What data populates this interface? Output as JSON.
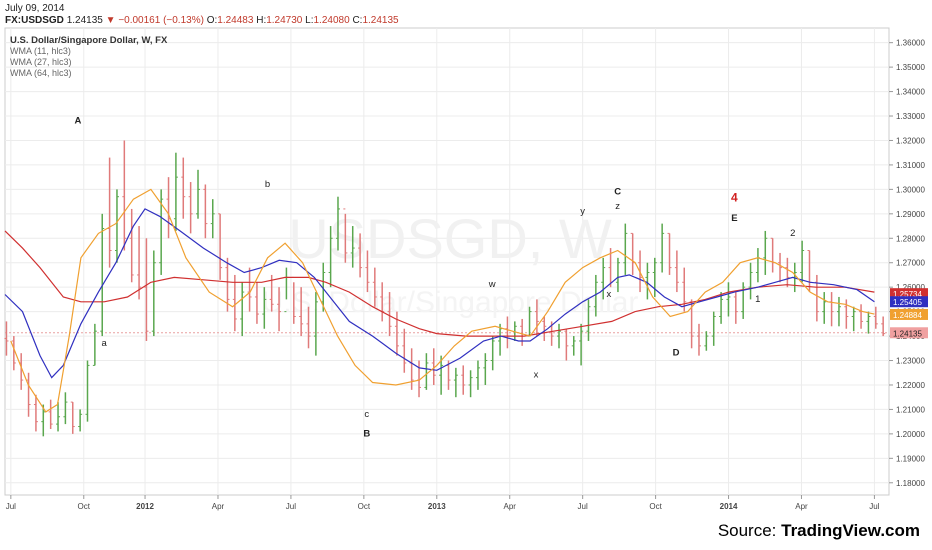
{
  "header": {
    "date": "July 09, 2014",
    "symbol": "FX:USDSGD",
    "last": "1.24135",
    "change": "−0.00161 (−0.13%)",
    "open_label": "O:",
    "open": "1.24483",
    "high_label": "H:",
    "high": "1.24730",
    "low_label": "L:",
    "low": "1.24080",
    "close_label": "C:",
    "close": "1.24135"
  },
  "source": {
    "prefix": "Source: ",
    "brand": "TradingView.com"
  },
  "colors": {
    "up": "#5aa74e",
    "down": "#e07a7a",
    "wma11": "#f0a030",
    "wma27": "#3030c0",
    "wma64": "#d03030",
    "wave4": "#d02020"
  },
  "chart_data": {
    "type": "line",
    "title": "U.S. Dollar/Singapore Dollar, W, FX",
    "watermark": "USDSGD, W",
    "watermark_sub": "U.S. Dollar/Singapore Dollar",
    "legend": [
      "WMA (11, hlc3)",
      "WMA (27, hlc3)",
      "WMA (64, hlc3)"
    ],
    "legend_placement": "top-left",
    "grid": true,
    "ylim": [
      1.175,
      1.366
    ],
    "xlim": [
      2011.52,
      2014.55
    ],
    "y_ticks": [
      1.18,
      1.19,
      1.2,
      1.21,
      1.22,
      1.23,
      1.24,
      1.25,
      1.26,
      1.27,
      1.28,
      1.29,
      1.3,
      1.31,
      1.32,
      1.33,
      1.34,
      1.35,
      1.36
    ],
    "y_tick_labels": [
      "1.18000",
      "1.19000",
      "1.20000",
      "1.21000",
      "1.22000",
      "1.23000",
      "1.24000",
      "1.25000",
      "1.26000",
      "1.27000",
      "1.28000",
      "1.29000",
      "1.30000",
      "1.31000",
      "1.32000",
      "1.33000",
      "1.34000",
      "1.35000",
      "1.36000"
    ],
    "x_ticks": [
      2011.54,
      2011.79,
      2012.0,
      2012.25,
      2012.5,
      2012.75,
      2013.0,
      2013.25,
      2013.5,
      2013.75,
      2014.0,
      2014.25,
      2014.5
    ],
    "x_tick_labels": [
      "Jul",
      "Oct",
      "2012",
      "Apr",
      "Jul",
      "Oct",
      "2013",
      "Apr",
      "Jul",
      "Oct",
      "2014",
      "Apr",
      "Jul"
    ],
    "bar_hlc": [
      [
        1.246,
        1.232,
        1.238
      ],
      [
        1.24,
        1.226,
        1.229
      ],
      [
        1.233,
        1.218,
        1.222
      ],
      [
        1.225,
        1.207,
        1.212
      ],
      [
        1.216,
        1.201,
        1.205
      ],
      [
        1.212,
        1.199,
        1.209
      ],
      [
        1.214,
        1.202,
        1.204
      ],
      [
        1.213,
        1.201,
        1.207
      ],
      [
        1.217,
        1.204,
        1.213
      ],
      [
        1.213,
        1.2,
        1.203
      ],
      [
        1.21,
        1.201,
        1.208
      ],
      [
        1.23,
        1.205,
        1.228
      ],
      [
        1.245,
        1.228,
        1.242
      ],
      [
        1.29,
        1.24,
        1.284
      ],
      [
        1.313,
        1.268,
        1.275
      ],
      [
        1.3,
        1.27,
        1.297
      ],
      [
        1.32,
        1.275,
        1.28
      ],
      [
        1.292,
        1.262,
        1.265
      ],
      [
        1.285,
        1.255,
        1.26
      ],
      [
        1.28,
        1.238,
        1.242
      ],
      [
        1.275,
        1.24,
        1.27
      ],
      [
        1.3,
        1.265,
        1.296
      ],
      [
        1.305,
        1.28,
        1.288
      ],
      [
        1.315,
        1.283,
        1.305
      ],
      [
        1.313,
        1.288,
        1.297
      ],
      [
        1.303,
        1.282,
        1.29
      ],
      [
        1.308,
        1.288,
        1.3
      ],
      [
        1.302,
        1.28,
        1.286
      ],
      [
        1.296,
        1.28,
        1.29
      ],
      [
        1.29,
        1.263,
        1.268
      ],
      [
        1.272,
        1.25,
        1.255
      ],
      [
        1.265,
        1.242,
        1.247
      ],
      [
        1.262,
        1.24,
        1.258
      ],
      [
        1.268,
        1.25,
        1.256
      ],
      [
        1.262,
        1.245,
        1.249
      ],
      [
        1.26,
        1.243,
        1.255
      ],
      [
        1.265,
        1.25,
        1.253
      ],
      [
        1.26,
        1.242,
        1.25
      ],
      [
        1.268,
        1.255,
        1.264
      ],
      [
        1.262,
        1.245,
        1.248
      ],
      [
        1.26,
        1.24,
        1.245
      ],
      [
        1.252,
        1.235,
        1.24
      ],
      [
        1.258,
        1.232,
        1.254
      ],
      [
        1.27,
        1.25,
        1.266
      ],
      [
        1.285,
        1.26,
        1.28
      ],
      [
        1.297,
        1.275,
        1.292
      ],
      [
        1.29,
        1.27,
        1.274
      ],
      [
        1.285,
        1.268,
        1.276
      ],
      [
        1.282,
        1.264,
        1.268
      ],
      [
        1.275,
        1.258,
        1.262
      ],
      [
        1.268,
        1.252,
        1.256
      ],
      [
        1.262,
        1.246,
        1.25
      ],
      [
        1.258,
        1.24,
        1.244
      ],
      [
        1.25,
        1.232,
        1.236
      ],
      [
        1.243,
        1.225,
        1.229
      ],
      [
        1.235,
        1.218,
        1.222
      ],
      [
        1.23,
        1.215,
        1.219
      ],
      [
        1.233,
        1.218,
        1.229
      ],
      [
        1.235,
        1.22,
        1.224
      ],
      [
        1.232,
        1.216,
        1.228
      ],
      [
        1.23,
        1.218,
        1.222
      ],
      [
        1.227,
        1.215,
        1.224
      ],
      [
        1.228,
        1.216,
        1.22
      ],
      [
        1.226,
        1.215,
        1.223
      ],
      [
        1.23,
        1.218,
        1.227
      ],
      [
        1.233,
        1.22,
        1.23
      ],
      [
        1.24,
        1.226,
        1.238
      ],
      [
        1.245,
        1.232,
        1.243
      ],
      [
        1.248,
        1.235,
        1.24
      ],
      [
        1.246,
        1.238,
        1.244
      ],
      [
        1.247,
        1.236,
        1.24
      ],
      [
        1.252,
        1.24,
        1.25
      ],
      [
        1.255,
        1.24,
        1.246
      ],
      [
        1.248,
        1.238,
        1.244
      ],
      [
        1.246,
        1.236,
        1.24
      ],
      [
        1.245,
        1.235,
        1.242
      ],
      [
        1.243,
        1.23,
        1.236
      ],
      [
        1.24,
        1.232,
        1.238
      ],
      [
        1.245,
        1.228,
        1.242
      ],
      [
        1.255,
        1.238,
        1.252
      ],
      [
        1.265,
        1.248,
        1.262
      ],
      [
        1.272,
        1.255,
        1.268
      ],
      [
        1.276,
        1.26,
        1.262
      ],
      [
        1.272,
        1.258,
        1.27
      ],
      [
        1.286,
        1.265,
        1.282
      ],
      [
        1.282,
        1.265,
        1.27
      ],
      [
        1.275,
        1.258,
        1.264
      ],
      [
        1.27,
        1.255,
        1.266
      ],
      [
        1.272,
        1.256,
        1.27
      ],
      [
        1.286,
        1.266,
        1.282
      ],
      [
        1.282,
        1.265,
        1.268
      ],
      [
        1.275,
        1.258,
        1.262
      ],
      [
        1.268,
        1.25,
        1.254
      ],
      [
        1.255,
        1.235,
        1.24
      ],
      [
        1.245,
        1.232,
        1.236
      ],
      [
        1.242,
        1.234,
        1.24
      ],
      [
        1.25,
        1.236,
        1.248
      ],
      [
        1.258,
        1.245,
        1.255
      ],
      [
        1.262,
        1.248,
        1.256
      ],
      [
        1.258,
        1.245,
        1.25
      ],
      [
        1.262,
        1.247,
        1.26
      ],
      [
        1.27,
        1.255,
        1.266
      ],
      [
        1.276,
        1.262,
        1.272
      ],
      [
        1.283,
        1.265,
        1.28
      ],
      [
        1.28,
        1.266,
        1.27
      ],
      [
        1.274,
        1.262,
        1.268
      ],
      [
        1.272,
        1.26,
        1.264
      ],
      [
        1.27,
        1.258,
        1.266
      ],
      [
        1.279,
        1.262,
        1.275
      ],
      [
        1.275,
        1.258,
        1.262
      ],
      [
        1.265,
        1.246,
        1.25
      ],
      [
        1.258,
        1.245,
        1.254
      ],
      [
        1.258,
        1.244,
        1.25
      ],
      [
        1.256,
        1.244,
        1.252
      ],
      [
        1.255,
        1.243,
        1.248
      ],
      [
        1.252,
        1.242,
        1.25
      ],
      [
        1.253,
        1.243,
        1.246
      ],
      [
        1.25,
        1.241,
        1.248
      ],
      [
        1.252,
        1.243,
        1.245
      ],
      [
        1.248,
        1.24,
        1.241
      ]
    ],
    "wma11": [
      [
        2011.54,
        1.238
      ],
      [
        2011.6,
        1.22
      ],
      [
        2011.66,
        1.209
      ],
      [
        2011.7,
        1.212
      ],
      [
        2011.74,
        1.24
      ],
      [
        2011.78,
        1.272
      ],
      [
        2011.84,
        1.282
      ],
      [
        2011.9,
        1.286
      ],
      [
        2011.96,
        1.296
      ],
      [
        2012.02,
        1.3
      ],
      [
        2012.08,
        1.29
      ],
      [
        2012.14,
        1.272
      ],
      [
        2012.22,
        1.258
      ],
      [
        2012.3,
        1.252
      ],
      [
        2012.36,
        1.258
      ],
      [
        2012.42,
        1.272
      ],
      [
        2012.48,
        1.278
      ],
      [
        2012.54,
        1.27
      ],
      [
        2012.6,
        1.255
      ],
      [
        2012.66,
        1.24
      ],
      [
        2012.72,
        1.228
      ],
      [
        2012.78,
        1.221
      ],
      [
        2012.86,
        1.22
      ],
      [
        2012.94,
        1.222
      ],
      [
        2013.0,
        1.228
      ],
      [
        2013.06,
        1.236
      ],
      [
        2013.12,
        1.242
      ],
      [
        2013.2,
        1.244
      ],
      [
        2013.26,
        1.242
      ],
      [
        2013.32,
        1.24
      ],
      [
        2013.38,
        1.25
      ],
      [
        2013.44,
        1.262
      ],
      [
        2013.5,
        1.268
      ],
      [
        2013.56,
        1.272
      ],
      [
        2013.62,
        1.275
      ],
      [
        2013.68,
        1.27
      ],
      [
        2013.74,
        1.256
      ],
      [
        2013.8,
        1.248
      ],
      [
        2013.86,
        1.25
      ],
      [
        2013.92,
        1.258
      ],
      [
        2013.98,
        1.262
      ],
      [
        2014.04,
        1.27
      ],
      [
        2014.1,
        1.272
      ],
      [
        2014.16,
        1.27
      ],
      [
        2014.22,
        1.266
      ],
      [
        2014.28,
        1.258
      ],
      [
        2014.34,
        1.254
      ],
      [
        2014.4,
        1.253
      ],
      [
        2014.46,
        1.25
      ],
      [
        2014.5,
        1.249
      ]
    ],
    "wma27": [
      [
        2011.52,
        1.257
      ],
      [
        2011.58,
        1.25
      ],
      [
        2011.64,
        1.232
      ],
      [
        2011.68,
        1.223
      ],
      [
        2011.72,
        1.228
      ],
      [
        2011.78,
        1.245
      ],
      [
        2011.84,
        1.258
      ],
      [
        2011.9,
        1.27
      ],
      [
        2011.96,
        1.285
      ],
      [
        2012.0,
        1.292
      ],
      [
        2012.05,
        1.289
      ],
      [
        2012.12,
        1.283
      ],
      [
        2012.2,
        1.276
      ],
      [
        2012.28,
        1.27
      ],
      [
        2012.34,
        1.266
      ],
      [
        2012.4,
        1.268
      ],
      [
        2012.46,
        1.271
      ],
      [
        2012.52,
        1.27
      ],
      [
        2012.58,
        1.264
      ],
      [
        2012.64,
        1.255
      ],
      [
        2012.7,
        1.246
      ],
      [
        2012.78,
        1.24
      ],
      [
        2012.86,
        1.233
      ],
      [
        2012.94,
        1.227
      ],
      [
        2013.0,
        1.226
      ],
      [
        2013.08,
        1.231
      ],
      [
        2013.16,
        1.238
      ],
      [
        2013.22,
        1.24
      ],
      [
        2013.28,
        1.238
      ],
      [
        2013.32,
        1.238
      ],
      [
        2013.38,
        1.243
      ],
      [
        2013.44,
        1.249
      ],
      [
        2013.5,
        1.254
      ],
      [
        2013.56,
        1.258
      ],
      [
        2013.62,
        1.264
      ],
      [
        2013.66,
        1.265
      ],
      [
        2013.72,
        1.262
      ],
      [
        2013.78,
        1.256
      ],
      [
        2013.84,
        1.252
      ],
      [
        2013.9,
        1.254
      ],
      [
        2013.96,
        1.256
      ],
      [
        2014.02,
        1.258
      ],
      [
        2014.1,
        1.26
      ],
      [
        2014.16,
        1.262
      ],
      [
        2014.22,
        1.264
      ],
      [
        2014.28,
        1.262
      ],
      [
        2014.36,
        1.261
      ],
      [
        2014.44,
        1.259
      ],
      [
        2014.5,
        1.254
      ]
    ],
    "wma64": [
      [
        2011.52,
        1.283
      ],
      [
        2011.58,
        1.276
      ],
      [
        2011.64,
        1.268
      ],
      [
        2011.72,
        1.256
      ],
      [
        2011.78,
        1.254
      ],
      [
        2011.86,
        1.254
      ],
      [
        2011.94,
        1.256
      ],
      [
        2012.02,
        1.262
      ],
      [
        2012.1,
        1.264
      ],
      [
        2012.2,
        1.263
      ],
      [
        2012.3,
        1.262
      ],
      [
        2012.4,
        1.262
      ],
      [
        2012.48,
        1.264
      ],
      [
        2012.56,
        1.264
      ],
      [
        2012.62,
        1.262
      ],
      [
        2012.7,
        1.258
      ],
      [
        2012.78,
        1.252
      ],
      [
        2012.86,
        1.247
      ],
      [
        2012.94,
        1.243
      ],
      [
        2013.0,
        1.241
      ],
      [
        2013.1,
        1.24
      ],
      [
        2013.2,
        1.24
      ],
      [
        2013.3,
        1.24
      ],
      [
        2013.4,
        1.242
      ],
      [
        2013.5,
        1.244
      ],
      [
        2013.6,
        1.246
      ],
      [
        2013.68,
        1.25
      ],
      [
        2013.76,
        1.252
      ],
      [
        2013.84,
        1.253
      ],
      [
        2013.92,
        1.255
      ],
      [
        2014.0,
        1.258
      ],
      [
        2014.1,
        1.26
      ],
      [
        2014.2,
        1.261
      ],
      [
        2014.3,
        1.26
      ],
      [
        2014.4,
        1.26
      ],
      [
        2014.5,
        1.258
      ]
    ],
    "price_line": 1.24135,
    "price_tags": [
      {
        "value": 1.25734,
        "label": "1.25734",
        "color": "#d03030"
      },
      {
        "value": 1.25405,
        "label": "1.25405",
        "color": "#3030c0"
      },
      {
        "value": 1.24884,
        "label": "1.24884",
        "color": "#f0a030"
      },
      {
        "value": 1.24135,
        "label": "1.24135",
        "color": "#f0a0a0"
      }
    ],
    "annotations": [
      {
        "x": 2011.77,
        "y": 1.327,
        "text": "A",
        "bold": true
      },
      {
        "x": 2011.86,
        "y": 1.236,
        "text": "a",
        "bold": false
      },
      {
        "x": 2012.42,
        "y": 1.301,
        "text": "b",
        "bold": false
      },
      {
        "x": 2012.76,
        "y": 1.207,
        "text": "c",
        "bold": false
      },
      {
        "x": 2012.76,
        "y": 1.199,
        "text": "B",
        "bold": true
      },
      {
        "x": 2013.19,
        "y": 1.26,
        "text": "w",
        "bold": false
      },
      {
        "x": 2013.34,
        "y": 1.223,
        "text": "x",
        "bold": false
      },
      {
        "x": 2013.5,
        "y": 1.29,
        "text": "y",
        "bold": false
      },
      {
        "x": 2013.62,
        "y": 1.298,
        "text": "C",
        "bold": true
      },
      {
        "x": 2013.62,
        "y": 1.292,
        "text": "z",
        "bold": false
      },
      {
        "x": 2013.59,
        "y": 1.256,
        "text": "x",
        "bold": false
      },
      {
        "x": 2013.82,
        "y": 1.232,
        "text": "D",
        "bold": true
      },
      {
        "x": 2014.02,
        "y": 1.295,
        "text": "4",
        "bold": true,
        "color": "#d02020"
      },
      {
        "x": 2014.02,
        "y": 1.287,
        "text": "E",
        "bold": true
      },
      {
        "x": 2014.1,
        "y": 1.254,
        "text": "1",
        "bold": false
      },
      {
        "x": 2014.22,
        "y": 1.281,
        "text": "2",
        "bold": false
      }
    ]
  }
}
